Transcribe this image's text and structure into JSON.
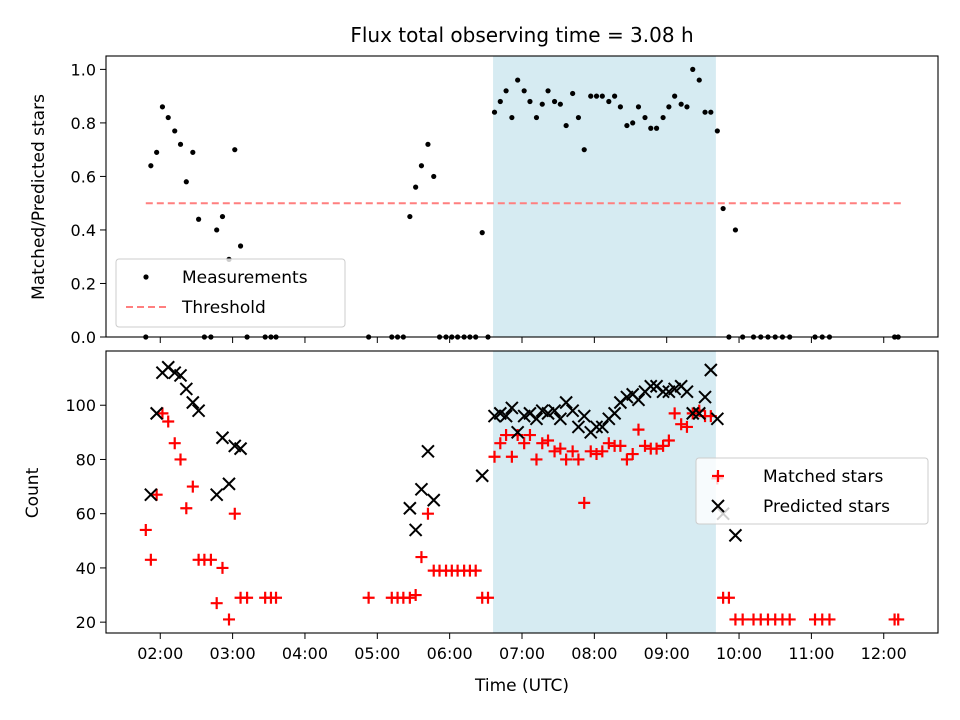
{
  "chart_data": [
    {
      "type": "scatter",
      "title": "Flux total observing time = 3.08 h",
      "ylabel": "Matched/Predicted stars",
      "xlim": [
        1.25,
        12.75
      ],
      "ylim": [
        0,
        1.05
      ],
      "xticks": [
        2,
        3,
        4,
        5,
        6,
        7,
        8,
        9,
        10,
        11,
        12
      ],
      "yticks": [
        0.0,
        0.2,
        0.4,
        0.6,
        0.8,
        1.0
      ],
      "ytick_labels": [
        "0.0",
        "0.2",
        "0.4",
        "0.6",
        "0.8",
        "1.0"
      ],
      "highlight_span": [
        6.6,
        9.68
      ],
      "threshold": {
        "name": "Threshold",
        "y": 0.5,
        "x": [
          1.8,
          12.25
        ],
        "color": "#ff7f7f"
      },
      "legend": {
        "position": "lower-left",
        "entries": [
          "Measurements",
          "Threshold"
        ]
      },
      "series": [
        {
          "name": "Measurements",
          "color": "#000000",
          "points": [
            [
              1.8,
              0.0
            ],
            [
              1.87,
              0.64
            ],
            [
              1.95,
              0.69
            ],
            [
              2.03,
              0.86
            ],
            [
              2.11,
              0.82
            ],
            [
              2.2,
              0.77
            ],
            [
              2.28,
              0.72
            ],
            [
              2.36,
              0.58
            ],
            [
              2.45,
              0.69
            ],
            [
              2.53,
              0.44
            ],
            [
              2.61,
              0.0
            ],
            [
              2.7,
              0.0
            ],
            [
              2.78,
              0.4
            ],
            [
              2.86,
              0.45
            ],
            [
              2.95,
              0.29
            ],
            [
              3.03,
              0.7
            ],
            [
              3.11,
              0.34
            ],
            [
              3.2,
              0.0
            ],
            [
              3.45,
              0.0
            ],
            [
              3.53,
              0.0
            ],
            [
              3.6,
              0.0
            ],
            [
              4.88,
              0.0
            ],
            [
              5.2,
              0.0
            ],
            [
              5.28,
              0.0
            ],
            [
              5.36,
              0.0
            ],
            [
              5.45,
              0.45
            ],
            [
              5.53,
              0.56
            ],
            [
              5.61,
              0.64
            ],
            [
              5.7,
              0.72
            ],
            [
              5.78,
              0.6
            ],
            [
              5.86,
              0.0
            ],
            [
              5.95,
              0.0
            ],
            [
              6.03,
              0.0
            ],
            [
              6.11,
              0.0
            ],
            [
              6.2,
              0.0
            ],
            [
              6.28,
              0.0
            ],
            [
              6.36,
              0.0
            ],
            [
              6.45,
              0.39
            ],
            [
              6.53,
              0.0
            ],
            [
              6.62,
              0.84
            ],
            [
              6.7,
              0.88
            ],
            [
              6.78,
              0.92
            ],
            [
              6.86,
              0.82
            ],
            [
              6.94,
              0.96
            ],
            [
              7.03,
              0.92
            ],
            [
              7.11,
              0.88
            ],
            [
              7.2,
              0.82
            ],
            [
              7.28,
              0.87
            ],
            [
              7.36,
              0.92
            ],
            [
              7.45,
              0.88
            ],
            [
              7.53,
              0.87
            ],
            [
              7.61,
              0.79
            ],
            [
              7.7,
              0.91
            ],
            [
              7.78,
              0.82
            ],
            [
              7.86,
              0.7
            ],
            [
              7.95,
              0.9
            ],
            [
              8.03,
              0.9
            ],
            [
              8.11,
              0.9
            ],
            [
              8.2,
              0.88
            ],
            [
              8.28,
              0.9
            ],
            [
              8.36,
              0.86
            ],
            [
              8.45,
              0.79
            ],
            [
              8.53,
              0.8
            ],
            [
              8.61,
              0.86
            ],
            [
              8.7,
              0.82
            ],
            [
              8.78,
              0.78
            ],
            [
              8.86,
              0.78
            ],
            [
              8.95,
              0.82
            ],
            [
              9.03,
              0.86
            ],
            [
              9.11,
              0.9
            ],
            [
              9.2,
              0.87
            ],
            [
              9.28,
              0.86
            ],
            [
              9.36,
              1.0
            ],
            [
              9.45,
              0.96
            ],
            [
              9.53,
              0.84
            ],
            [
              9.61,
              0.84
            ],
            [
              9.7,
              0.77
            ],
            [
              9.78,
              0.48
            ],
            [
              9.86,
              0.0
            ],
            [
              9.95,
              0.4
            ],
            [
              10.05,
              0.0
            ],
            [
              10.2,
              0.0
            ],
            [
              10.3,
              0.0
            ],
            [
              10.4,
              0.0
            ],
            [
              10.5,
              0.0
            ],
            [
              10.6,
              0.0
            ],
            [
              10.7,
              0.0
            ],
            [
              11.05,
              0.0
            ],
            [
              11.15,
              0.0
            ],
            [
              11.25,
              0.0
            ],
            [
              12.15,
              0.0
            ],
            [
              12.2,
              0.0
            ]
          ]
        }
      ]
    },
    {
      "type": "scatter",
      "xlabel": "Time (UTC)",
      "ylabel": "Count",
      "xlim": [
        1.25,
        12.75
      ],
      "ylim": [
        16,
        120
      ],
      "xticks": [
        2,
        3,
        4,
        5,
        6,
        7,
        8,
        9,
        10,
        11,
        12
      ],
      "xtick_labels": [
        "02:00",
        "03:00",
        "04:00",
        "05:00",
        "06:00",
        "07:00",
        "08:00",
        "09:00",
        "10:00",
        "11:00",
        "12:00"
      ],
      "yticks": [
        20,
        40,
        60,
        80,
        100
      ],
      "ytick_labels": [
        "20",
        "40",
        "60",
        "80",
        "100"
      ],
      "highlight_span": [
        6.6,
        9.68
      ],
      "legend": {
        "position": "center-right",
        "entries": [
          "Matched stars",
          "Predicted stars"
        ]
      },
      "series": [
        {
          "name": "Matched stars",
          "marker": "plus",
          "color": "#ff0000",
          "points": [
            [
              1.8,
              54
            ],
            [
              1.87,
              43
            ],
            [
              1.95,
              67
            ],
            [
              2.03,
              97
            ],
            [
              2.11,
              94
            ],
            [
              2.2,
              86
            ],
            [
              2.28,
              80
            ],
            [
              2.36,
              62
            ],
            [
              2.45,
              70
            ],
            [
              2.53,
              43
            ],
            [
              2.61,
              43
            ],
            [
              2.7,
              43
            ],
            [
              2.78,
              27
            ],
            [
              2.86,
              40
            ],
            [
              2.95,
              21
            ],
            [
              3.03,
              60
            ],
            [
              3.11,
              29
            ],
            [
              3.2,
              29
            ],
            [
              3.45,
              29
            ],
            [
              3.53,
              29
            ],
            [
              3.6,
              29
            ],
            [
              4.88,
              29
            ],
            [
              5.2,
              29
            ],
            [
              5.28,
              29
            ],
            [
              5.36,
              29
            ],
            [
              5.45,
              29
            ],
            [
              5.53,
              30
            ],
            [
              5.61,
              44
            ],
            [
              5.7,
              60
            ],
            [
              5.78,
              39
            ],
            [
              5.86,
              39
            ],
            [
              5.95,
              39
            ],
            [
              6.03,
              39
            ],
            [
              6.11,
              39
            ],
            [
              6.2,
              39
            ],
            [
              6.28,
              39
            ],
            [
              6.36,
              39
            ],
            [
              6.45,
              29
            ],
            [
              6.53,
              29
            ],
            [
              6.62,
              81
            ],
            [
              6.7,
              86
            ],
            [
              6.78,
              89
            ],
            [
              6.86,
              81
            ],
            [
              6.94,
              89
            ],
            [
              7.03,
              86
            ],
            [
              7.11,
              89
            ],
            [
              7.2,
              80
            ],
            [
              7.28,
              86
            ],
            [
              7.36,
              87
            ],
            [
              7.45,
              83
            ],
            [
              7.53,
              84
            ],
            [
              7.61,
              80
            ],
            [
              7.7,
              83
            ],
            [
              7.78,
              80
            ],
            [
              7.86,
              64
            ],
            [
              7.95,
              83
            ],
            [
              8.03,
              82
            ],
            [
              8.11,
              83
            ],
            [
              8.2,
              86
            ],
            [
              8.28,
              85
            ],
            [
              8.36,
              85
            ],
            [
              8.45,
              80
            ],
            [
              8.53,
              82
            ],
            [
              8.61,
              91
            ],
            [
              8.7,
              85
            ],
            [
              8.78,
              84
            ],
            [
              8.86,
              84
            ],
            [
              8.95,
              85
            ],
            [
              9.03,
              87
            ],
            [
              9.11,
              97
            ],
            [
              9.2,
              93
            ],
            [
              9.28,
              92
            ],
            [
              9.36,
              97
            ],
            [
              9.45,
              98
            ],
            [
              9.53,
              96
            ],
            [
              9.61,
              96
            ],
            [
              9.7,
              73
            ],
            [
              9.78,
              29
            ],
            [
              9.86,
              29
            ],
            [
              9.95,
              21
            ],
            [
              10.05,
              21
            ],
            [
              10.2,
              21
            ],
            [
              10.3,
              21
            ],
            [
              10.4,
              21
            ],
            [
              10.5,
              21
            ],
            [
              10.6,
              21
            ],
            [
              10.7,
              21
            ],
            [
              11.05,
              21
            ],
            [
              11.15,
              21
            ],
            [
              11.25,
              21
            ],
            [
              12.15,
              21
            ],
            [
              12.2,
              21
            ]
          ]
        },
        {
          "name": "Predicted stars",
          "marker": "x",
          "color": "#000000",
          "points": [
            [
              1.87,
              67
            ],
            [
              1.95,
              97
            ],
            [
              2.03,
              112
            ],
            [
              2.11,
              114
            ],
            [
              2.2,
              112
            ],
            [
              2.28,
              111
            ],
            [
              2.36,
              106
            ],
            [
              2.45,
              101
            ],
            [
              2.53,
              98
            ],
            [
              2.78,
              67
            ],
            [
              2.86,
              88
            ],
            [
              2.95,
              71
            ],
            [
              3.03,
              85
            ],
            [
              3.11,
              84
            ],
            [
              5.45,
              62
            ],
            [
              5.53,
              54
            ],
            [
              5.61,
              69
            ],
            [
              5.7,
              83
            ],
            [
              5.78,
              65
            ],
            [
              6.45,
              74
            ],
            [
              6.62,
              96
            ],
            [
              6.7,
              97
            ],
            [
              6.78,
              96
            ],
            [
              6.86,
              99
            ],
            [
              6.94,
              90
            ],
            [
              7.03,
              96
            ],
            [
              7.11,
              97
            ],
            [
              7.2,
              95
            ],
            [
              7.28,
              98
            ],
            [
              7.36,
              97
            ],
            [
              7.45,
              98
            ],
            [
              7.53,
              95
            ],
            [
              7.61,
              101
            ],
            [
              7.7,
              98
            ],
            [
              7.78,
              92
            ],
            [
              7.86,
              96
            ],
            [
              7.95,
              90
            ],
            [
              8.03,
              92
            ],
            [
              8.11,
              92
            ],
            [
              8.2,
              95
            ],
            [
              8.28,
              97
            ],
            [
              8.36,
              101
            ],
            [
              8.45,
              103
            ],
            [
              8.53,
              104
            ],
            [
              8.61,
              102
            ],
            [
              8.7,
              105
            ],
            [
              8.78,
              107
            ],
            [
              8.86,
              107
            ],
            [
              8.95,
              105
            ],
            [
              9.03,
              105
            ],
            [
              9.11,
              106
            ],
            [
              9.2,
              107
            ],
            [
              9.28,
              105
            ],
            [
              9.36,
              97
            ],
            [
              9.45,
              97
            ],
            [
              9.53,
              103
            ],
            [
              9.61,
              113
            ],
            [
              9.7,
              95
            ],
            [
              9.78,
              60
            ],
            [
              9.95,
              52
            ]
          ]
        }
      ]
    }
  ]
}
